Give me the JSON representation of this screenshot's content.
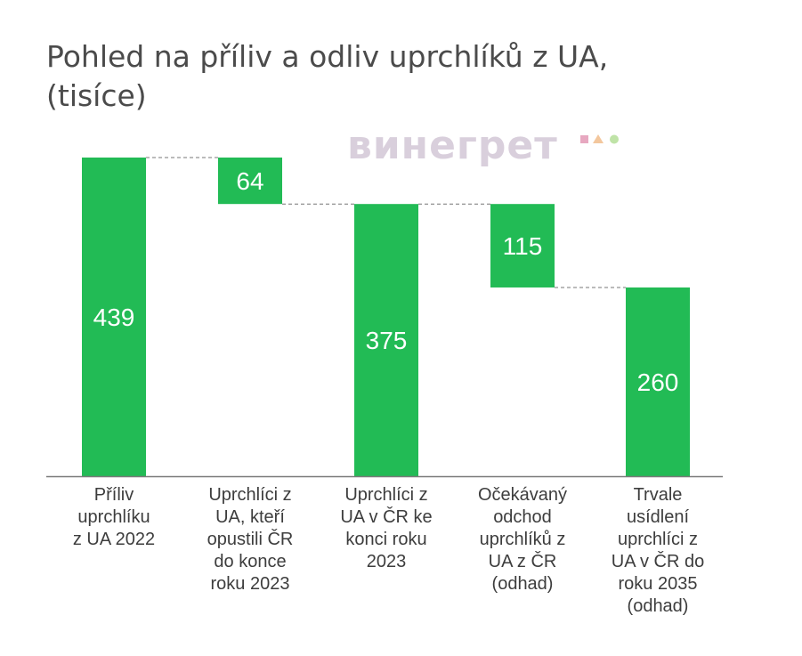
{
  "title_line1": "Pohled na příliv a odliv uprchlíků z UA,",
  "title_line2": "(tisíce)",
  "watermark": "винегрет",
  "colors": {
    "bar": "#22bb55",
    "connector": "#777777",
    "axis": "#7a7a7a",
    "label_text": "#ffffff"
  },
  "chart_data": {
    "type": "bar",
    "subtype": "waterfall",
    "title": "Pohled na příliv a odliv uprchlíků z UA, (tisíce)",
    "categories": [
      "Příliv\nuprchlíku\nz UA 2022",
      "Uprchlíci z\nUA, kteří\nopustili ČR\ndo konce\nroku 2023",
      "Uprchlíci z\nUA v  ČR ke\nkonci roku\n2023",
      "Očekávaný\nodchod\nuprchlíků z\nUA z ČR\n(odhad)",
      "Trvale\nusídlení\nuprchlíci z\nUA v ČR do\nroku 2035\n(odhad)"
    ],
    "values": [
      439,
      64,
      375,
      115,
      260
    ],
    "kinds": [
      "total",
      "decrease",
      "total",
      "decrease",
      "total"
    ],
    "data_labels": [
      "439",
      "64",
      "375",
      "115",
      "260"
    ],
    "ylim": [
      0,
      439
    ],
    "grid": false,
    "legend": "none"
  }
}
